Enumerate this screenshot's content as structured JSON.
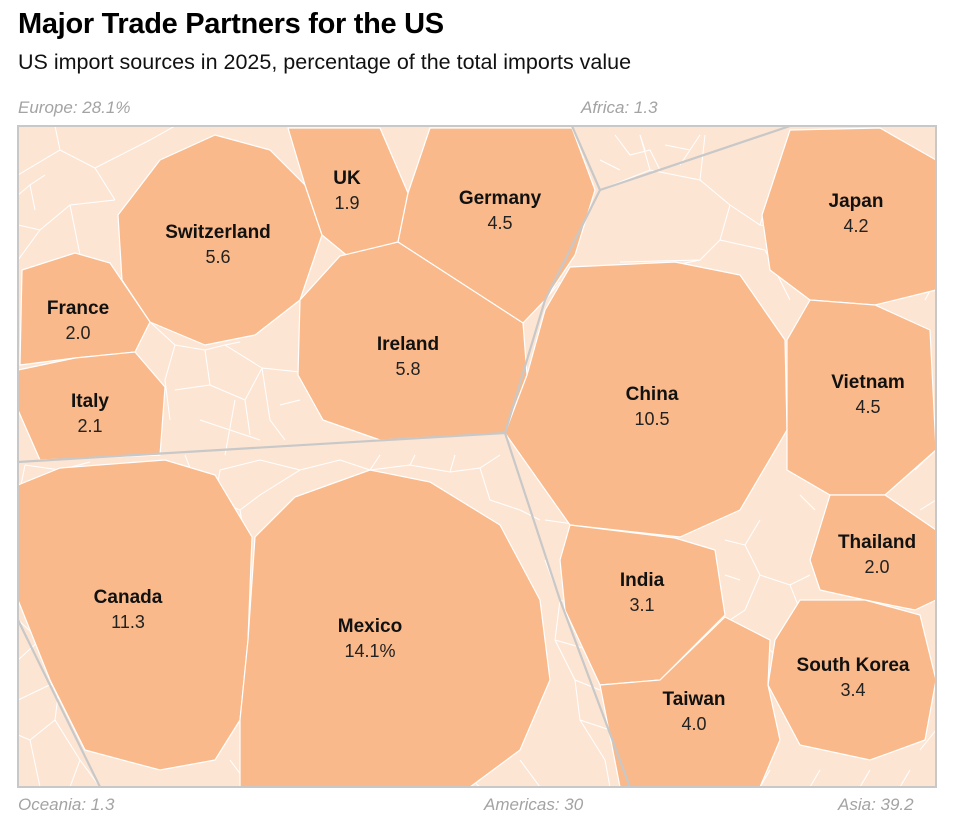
{
  "title": "Major Trade Partners for the US",
  "subtitle": "US import sources in 2025, percentage of the total imports value",
  "colors": {
    "cell_fill": "#f9b98a",
    "background_fill": "#fde5d4",
    "cell_border": "#ffffff",
    "region_border": "#c8c8c8",
    "region_label": "#a3a3a3"
  },
  "chart_data": {
    "type": "voronoi-treemap",
    "title": "Major Trade Partners for the US",
    "subtitle": "US import sources in 2025, percentage of the total imports value",
    "regions": [
      {
        "label": "Europe: 28.1%",
        "name": "Europe",
        "value": 28.1
      },
      {
        "label": "Africa: 1.3",
        "name": "Africa",
        "value": 1.3
      },
      {
        "label": "Oceania: 1.3",
        "name": "Oceania",
        "value": 1.3
      },
      {
        "label": "Americas: 30",
        "name": "Americas",
        "value": 30
      },
      {
        "label": "Asia: 39.2",
        "name": "Asia",
        "value": 39.2
      }
    ],
    "countries": [
      {
        "id": "switzerland",
        "name": "Switzerland",
        "region": "Europe",
        "value": 5.6,
        "label": "5.6"
      },
      {
        "id": "uk",
        "name": "UK",
        "region": "Europe",
        "value": 1.9,
        "label": "1.9"
      },
      {
        "id": "germany",
        "name": "Germany",
        "region": "Europe",
        "value": 4.5,
        "label": "4.5"
      },
      {
        "id": "france",
        "name": "France",
        "region": "Europe",
        "value": 2.0,
        "label": "2.0"
      },
      {
        "id": "ireland",
        "name": "Ireland",
        "region": "Europe",
        "value": 5.8,
        "label": "5.8"
      },
      {
        "id": "italy",
        "name": "Italy",
        "region": "Europe",
        "value": 2.1,
        "label": "2.1"
      },
      {
        "id": "canada",
        "name": "Canada",
        "region": "Americas",
        "value": 11.3,
        "label": "11.3"
      },
      {
        "id": "mexico",
        "name": "Mexico",
        "region": "Americas",
        "value": 14.1,
        "label": "14.1%"
      },
      {
        "id": "japan",
        "name": "Japan",
        "region": "Asia",
        "value": 4.2,
        "label": "4.2"
      },
      {
        "id": "china",
        "name": "China",
        "region": "Asia",
        "value": 10.5,
        "label": "10.5"
      },
      {
        "id": "vietnam",
        "name": "Vietnam",
        "region": "Asia",
        "value": 4.5,
        "label": "4.5"
      },
      {
        "id": "thailand",
        "name": "Thailand",
        "region": "Asia",
        "value": 2.0,
        "label": "2.0"
      },
      {
        "id": "india",
        "name": "India",
        "region": "Asia",
        "value": 3.1,
        "label": "3.1"
      },
      {
        "id": "south-korea",
        "name": "South Korea",
        "region": "Asia",
        "value": 3.4,
        "label": "3.4"
      },
      {
        "id": "taiwan",
        "name": "Taiwan",
        "region": "Asia",
        "value": 4.0,
        "label": "4.0"
      }
    ]
  }
}
